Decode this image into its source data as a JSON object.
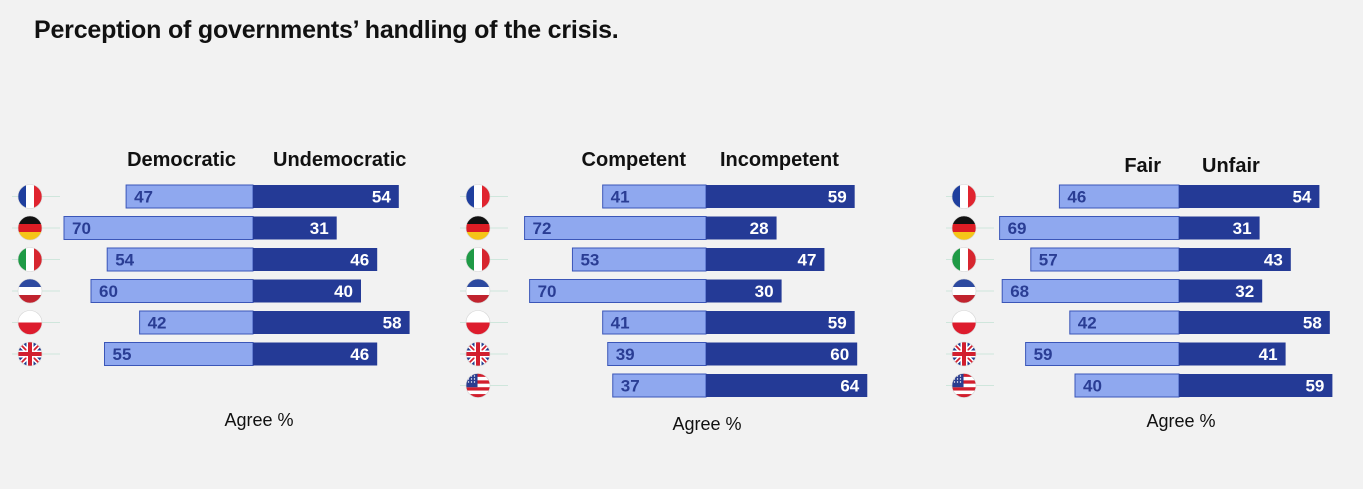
{
  "title": "Perception of governments’ handling of the crisis.",
  "colors": {
    "agree": "#8fa8ef",
    "disagree": "#243a96",
    "label_light": "#2a3d94",
    "label_dark": "#ffffff"
  },
  "chart_data": [
    {
      "type": "bar",
      "stacked": "diverging",
      "left_label": "Democratic",
      "right_label": "Undemocratic",
      "xlabel": "Agree %",
      "categories": [
        "france-flag",
        "germany-flag",
        "italy-flag",
        "netherlands-flag",
        "poland-flag",
        "uk-flag"
      ],
      "series": [
        {
          "name": "Democratic",
          "values": [
            47,
            70,
            54,
            60,
            42,
            55
          ]
        },
        {
          "name": "Undemocratic",
          "values": [
            54,
            31,
            46,
            40,
            58,
            46
          ]
        }
      ]
    },
    {
      "type": "bar",
      "stacked": "diverging",
      "left_label": "Competent",
      "right_label": "Incompetent",
      "xlabel": "Agree %",
      "categories": [
        "france-flag",
        "germany-flag",
        "italy-flag",
        "netherlands-flag",
        "poland-flag",
        "uk-flag",
        "usa-flag"
      ],
      "series": [
        {
          "name": "Competent",
          "values": [
            41,
            72,
            53,
            70,
            41,
            39,
            37
          ]
        },
        {
          "name": "Incompetent",
          "values": [
            59,
            28,
            47,
            30,
            59,
            60,
            64
          ]
        }
      ]
    },
    {
      "type": "bar",
      "stacked": "diverging",
      "left_label": "Fair",
      "right_label": "Unfair",
      "xlabel": "Agree %",
      "categories": [
        "france-flag",
        "germany-flag",
        "italy-flag",
        "netherlands-flag",
        "poland-flag",
        "uk-flag",
        "usa-flag"
      ],
      "series": [
        {
          "name": "Fair",
          "values": [
            46,
            69,
            57,
            68,
            42,
            59,
            40
          ]
        },
        {
          "name": "Unfair",
          "values": [
            54,
            31,
            43,
            32,
            58,
            41,
            59
          ]
        }
      ]
    }
  ]
}
